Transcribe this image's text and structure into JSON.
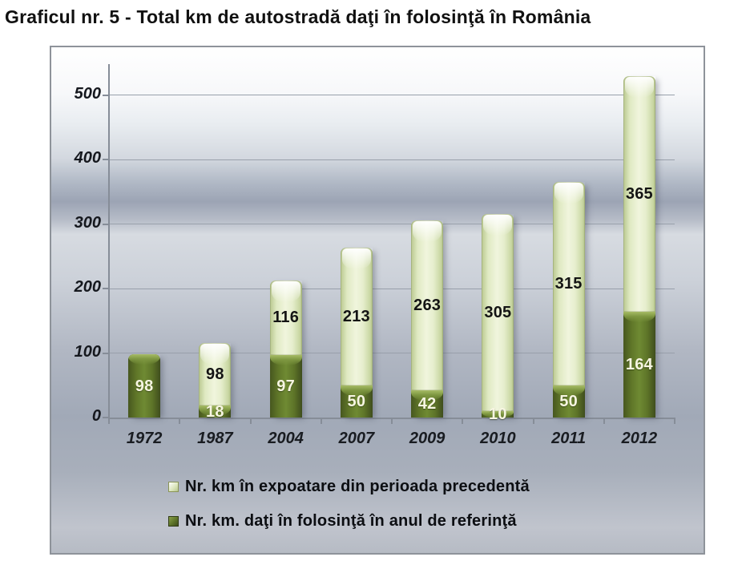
{
  "title": "Graficul nr.  5 - Total km de autostradă daţi în folosinţă în România",
  "chart_data": {
    "type": "bar",
    "stacked": true,
    "categories": [
      "1972",
      "1987",
      "2004",
      "2007",
      "2009",
      "2010",
      "2011",
      "2012"
    ],
    "series": [
      {
        "key": "dark",
        "name": "Nr. km. daţi în folosinţă în anul de referinţă",
        "color": "#5d7428",
        "label_color": "on-dark",
        "values": [
          98,
          18,
          97,
          50,
          42,
          10,
          50,
          164
        ]
      },
      {
        "key": "light",
        "name": "Nr. km în expoatare din perioada precedentă",
        "color": "#e6eecd",
        "label_color": "on-light",
        "values": [
          0,
          98,
          116,
          213,
          263,
          305,
          315,
          365
        ]
      }
    ],
    "legend": [
      {
        "label": "Nr. km în expoatare din perioada precedentă",
        "swatch": "light-green"
      },
      {
        "label": "Nr. km. daţi în folosinţă în anul de referinţă",
        "swatch": "dark-green"
      }
    ],
    "y_ticks": [
      0,
      100,
      200,
      300,
      400,
      500
    ],
    "ylim": [
      0,
      550
    ],
    "xlabel": "",
    "ylabel": "",
    "grid": "horizontal",
    "legend_position": "bottom",
    "accent_colors": {
      "dark_green": "#5d7428",
      "light_green": "#e6eecd",
      "background_top": "#ffffff",
      "background_mid": "#9ca4b4",
      "axis": "#868d98"
    }
  }
}
